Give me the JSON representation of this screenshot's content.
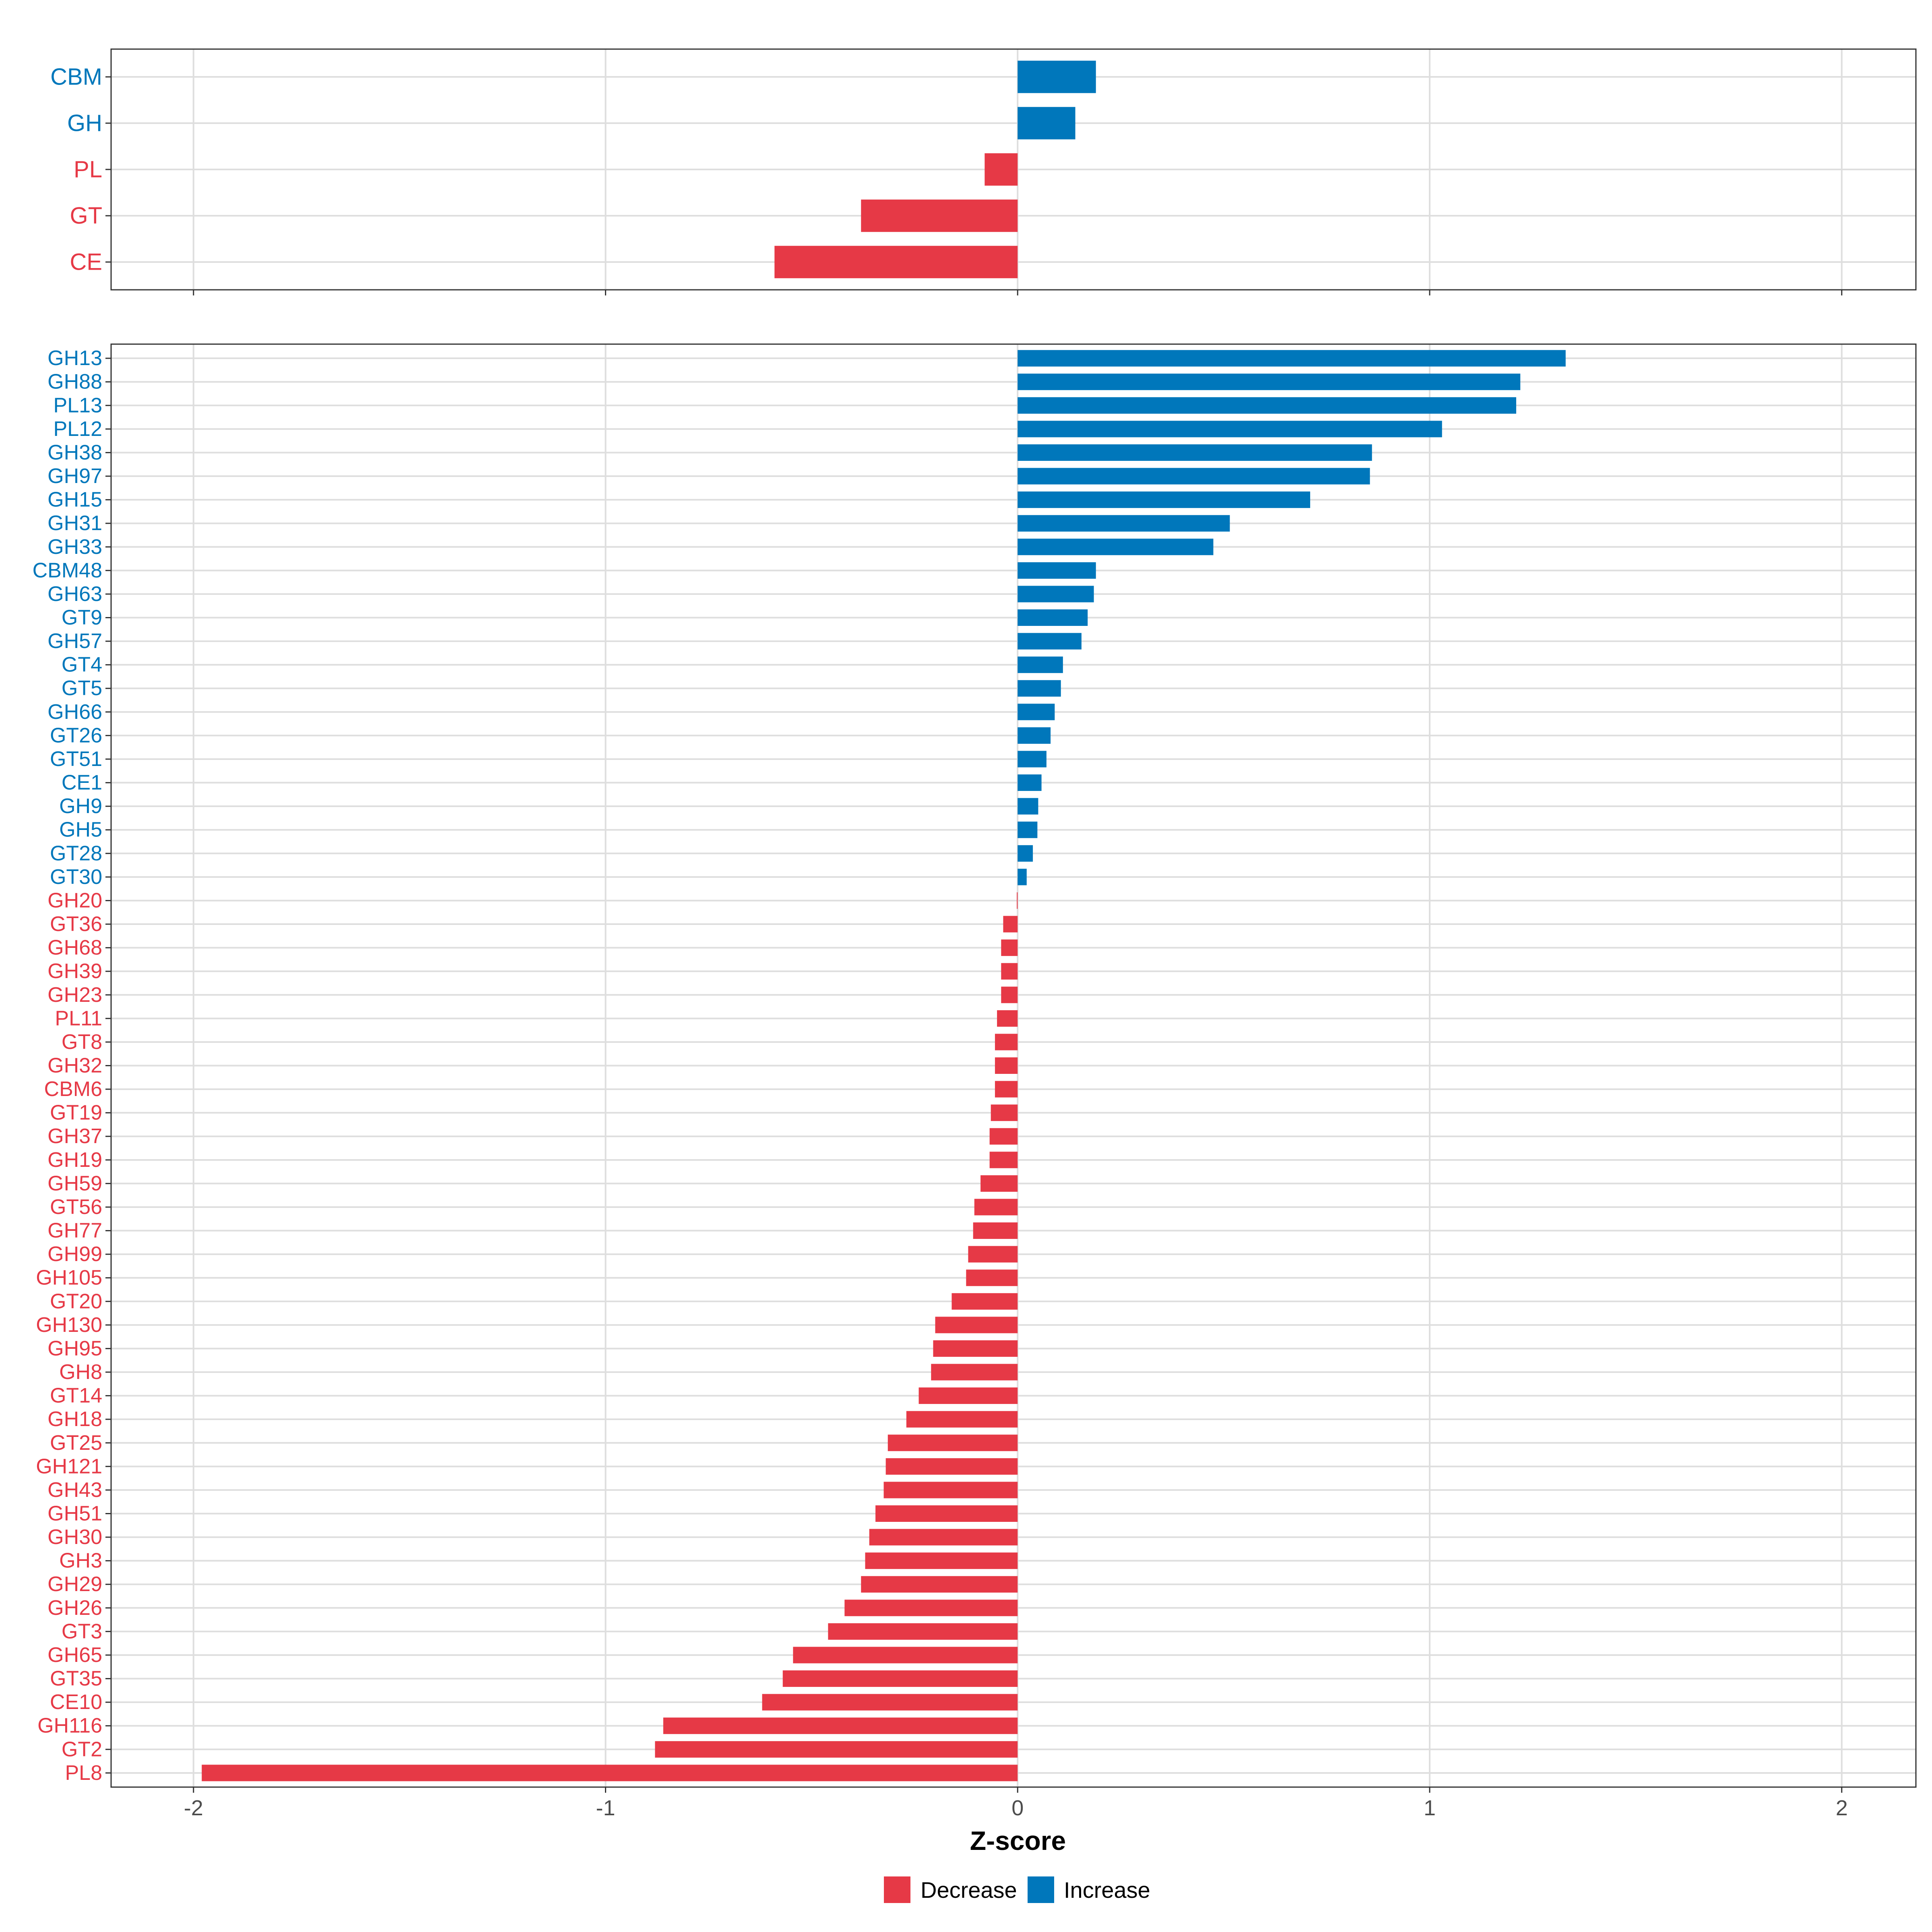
{
  "colors": {
    "decrease": "#E63946",
    "increase": "#0077BB",
    "grid": "#DEDEDE",
    "panel_border": "#333333",
    "tick_text": "#4D4D4D"
  },
  "chart_data": [
    {
      "type": "bar",
      "orientation": "horizontal",
      "panel": "top",
      "categories": [
        "CBM",
        "GH",
        "PL",
        "GT",
        "CE"
      ],
      "values": [
        0.19,
        0.14,
        -0.08,
        -0.38,
        -0.59
      ],
      "xlim": [
        -2.2,
        2.18
      ],
      "xticks": [
        -2,
        -1,
        0,
        1,
        2
      ],
      "grid": true
    },
    {
      "type": "bar",
      "orientation": "horizontal",
      "panel": "bottom",
      "categories": [
        "GH13",
        "GH88",
        "PL13",
        "PL12",
        "GH38",
        "GH97",
        "GH15",
        "GH31",
        "GH33",
        "CBM48",
        "GH63",
        "GT9",
        "GH57",
        "GT4",
        "GT5",
        "GH66",
        "GT26",
        "GT51",
        "CE1",
        "GH9",
        "GH5",
        "GT28",
        "GT30",
        "GH20",
        "GT36",
        "GH68",
        "GH39",
        "GH23",
        "PL11",
        "GT8",
        "GH32",
        "CBM6",
        "GT19",
        "GH37",
        "GH19",
        "GH59",
        "GT56",
        "GH77",
        "GH99",
        "GH105",
        "GT20",
        "GH130",
        "GH95",
        "GH8",
        "GT14",
        "GH18",
        "GT25",
        "GH121",
        "GH43",
        "GH51",
        "GH30",
        "GH3",
        "GH29",
        "GH26",
        "GT3",
        "GH65",
        "GT35",
        "CE10",
        "GH116",
        "GT2",
        "PL8"
      ],
      "values": [
        1.33,
        1.22,
        1.21,
        1.03,
        0.86,
        0.855,
        0.71,
        0.515,
        0.475,
        0.19,
        0.185,
        0.17,
        0.155,
        0.11,
        0.105,
        0.09,
        0.08,
        0.07,
        0.058,
        0.05,
        0.048,
        0.037,
        0.022,
        -0.002,
        -0.035,
        -0.04,
        -0.04,
        -0.04,
        -0.05,
        -0.055,
        -0.055,
        -0.055,
        -0.065,
        -0.068,
        -0.068,
        -0.09,
        -0.105,
        -0.108,
        -0.12,
        -0.125,
        -0.16,
        -0.2,
        -0.205,
        -0.21,
        -0.24,
        -0.27,
        -0.315,
        -0.32,
        -0.325,
        -0.345,
        -0.36,
        -0.37,
        -0.38,
        -0.42,
        -0.46,
        -0.545,
        -0.57,
        -0.62,
        -0.86,
        -0.88,
        -1.98
      ],
      "xlim": [
        -2.2,
        2.18
      ],
      "xticks": [
        -2,
        -1,
        0,
        1,
        2
      ],
      "xtick_labels": [
        "-2",
        "-1",
        "0",
        "1",
        "2"
      ],
      "xlabel": "Z-score",
      "grid": true
    }
  ],
  "legend": {
    "position": "bottom",
    "items": [
      {
        "label": "Decrease",
        "key": "decrease"
      },
      {
        "label": "Increase",
        "key": "increase"
      }
    ]
  }
}
